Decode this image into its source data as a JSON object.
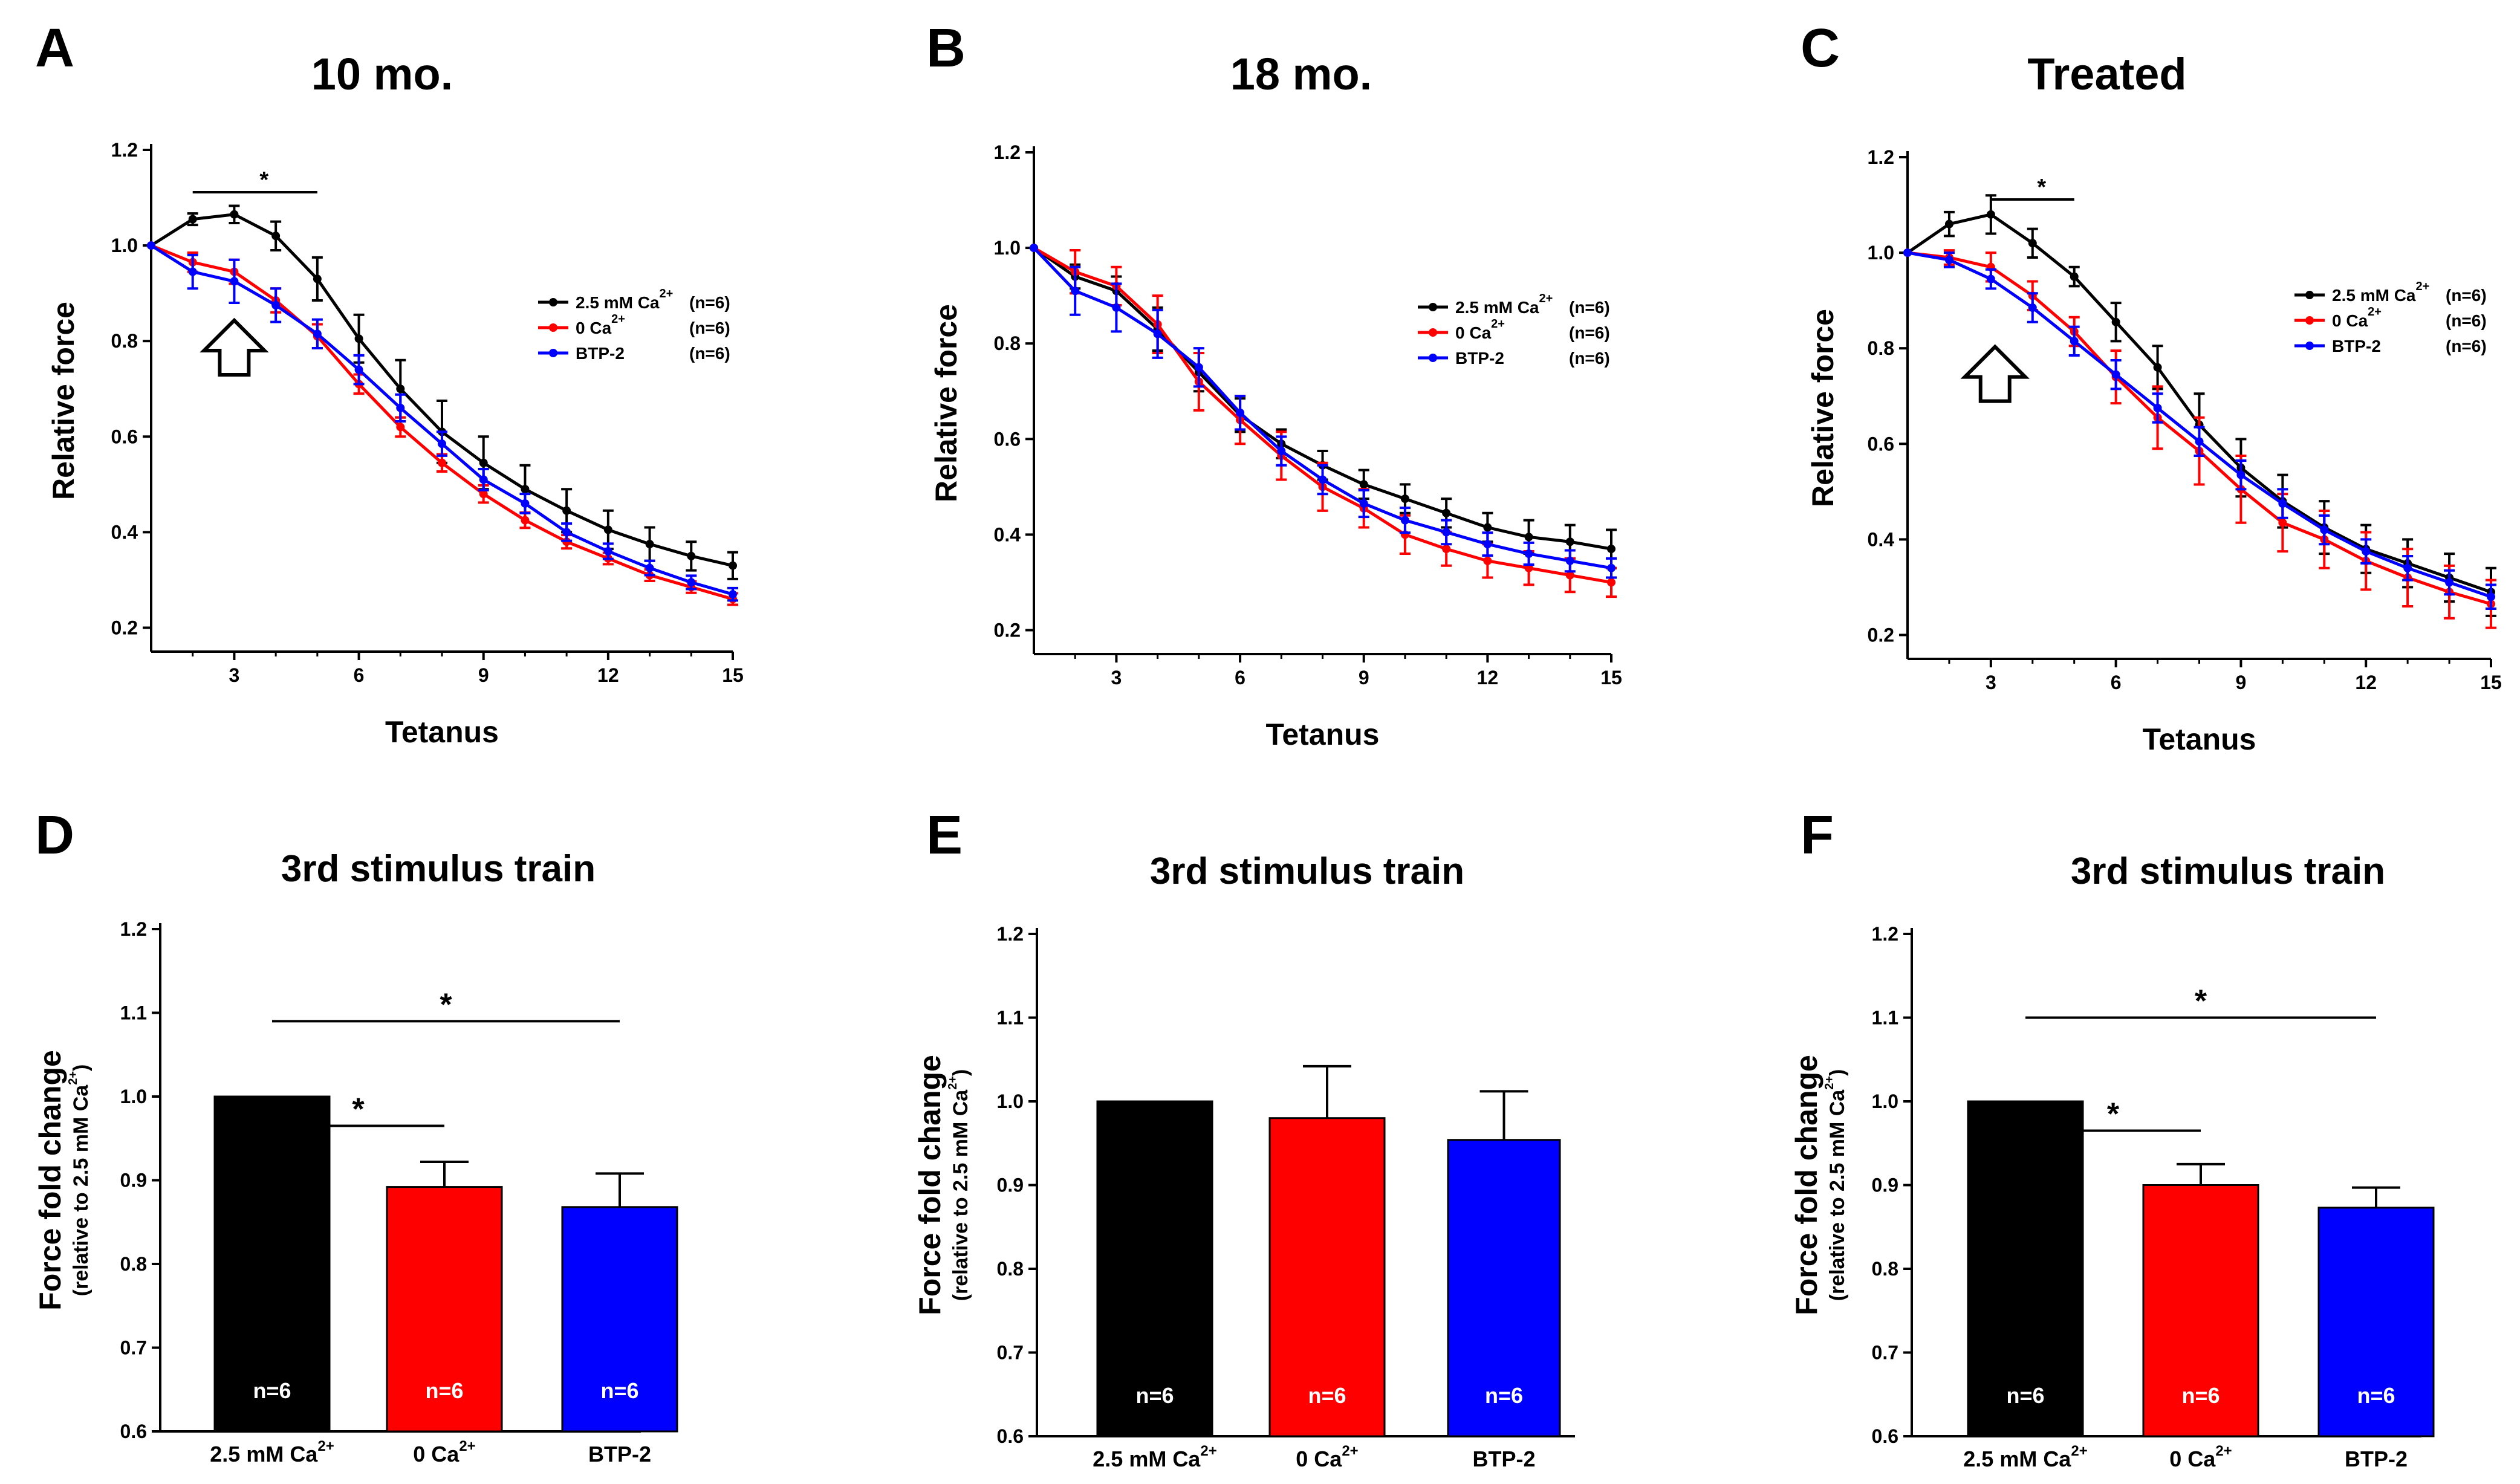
{
  "chart_data": [
    {
      "panel": "A",
      "type": "line",
      "title": "10 mo.",
      "xlabel": "Tetanus",
      "ylabel": "Relative force",
      "xticks": [
        3,
        6,
        9,
        12,
        15
      ],
      "xlim": [
        1,
        15
      ],
      "yticks": [
        "0.2",
        "0.4",
        "0.6",
        "0.8",
        "1.0",
        "1.2"
      ],
      "ylim": [
        0.15,
        1.2
      ],
      "significance": [
        {
          "from": 2,
          "to": 5,
          "label": "*"
        }
      ],
      "arrow_at": {
        "x": 3,
        "y": 0.78
      },
      "legend_position": "right-middle",
      "series": [
        {
          "name": "2.5 mM Ca",
          "sup": "2+",
          "n": "(n=6)",
          "color": "#000000",
          "x": [
            1,
            2,
            3,
            4,
            5,
            6,
            7,
            8,
            9,
            10,
            11,
            12,
            13,
            14,
            15
          ],
          "y": [
            1.0,
            1.055,
            1.065,
            1.02,
            0.93,
            0.805,
            0.7,
            0.61,
            0.545,
            0.49,
            0.445,
            0.405,
            0.375,
            0.35,
            0.33
          ],
          "err": [
            0,
            0.012,
            0.018,
            0.03,
            0.045,
            0.05,
            0.06,
            0.065,
            0.055,
            0.05,
            0.045,
            0.04,
            0.035,
            0.03,
            0.028
          ]
        },
        {
          "name": "0 Ca",
          "sup": "2+",
          "n": "(n=6)",
          "color": "#ff0000",
          "x": [
            1,
            2,
            3,
            4,
            5,
            6,
            7,
            8,
            9,
            10,
            11,
            12,
            13,
            14,
            15
          ],
          "y": [
            1.0,
            0.965,
            0.945,
            0.885,
            0.81,
            0.71,
            0.62,
            0.545,
            0.48,
            0.425,
            0.38,
            0.345,
            0.31,
            0.285,
            0.26
          ],
          "err": [
            0,
            0.02,
            0.025,
            0.025,
            0.025,
            0.02,
            0.02,
            0.018,
            0.018,
            0.016,
            0.014,
            0.012,
            0.012,
            0.012,
            0.012
          ]
        },
        {
          "name": "BTP-2",
          "sup": "",
          "n": "(n=6)",
          "color": "#0000ff",
          "x": [
            1,
            2,
            3,
            4,
            5,
            6,
            7,
            8,
            9,
            10,
            11,
            12,
            13,
            14,
            15
          ],
          "y": [
            1.0,
            0.945,
            0.925,
            0.875,
            0.815,
            0.74,
            0.66,
            0.585,
            0.51,
            0.46,
            0.4,
            0.36,
            0.325,
            0.295,
            0.27
          ],
          "err": [
            0,
            0.035,
            0.045,
            0.035,
            0.03,
            0.03,
            0.028,
            0.025,
            0.022,
            0.02,
            0.018,
            0.016,
            0.015,
            0.014,
            0.013
          ]
        }
      ]
    },
    {
      "panel": "B",
      "type": "line",
      "title": "18 mo.",
      "xlabel": "Tetanus",
      "ylabel": "Relative force",
      "xticks": [
        3,
        6,
        9,
        12,
        15
      ],
      "xlim": [
        1,
        15
      ],
      "yticks": [
        "0.2",
        "0.4",
        "0.6",
        "0.8",
        "1.0",
        "1.2"
      ],
      "ylim": [
        0.15,
        1.2
      ],
      "significance": [],
      "legend_position": "right-middle",
      "series": [
        {
          "name": "2.5 mM Ca",
          "sup": "2+",
          "n": "(n=6)",
          "color": "#000000",
          "x": [
            1,
            2,
            3,
            4,
            5,
            6,
            7,
            8,
            9,
            10,
            11,
            12,
            13,
            14,
            15
          ],
          "y": [
            1.0,
            0.94,
            0.91,
            0.83,
            0.74,
            0.65,
            0.59,
            0.545,
            0.505,
            0.475,
            0.445,
            0.415,
            0.395,
            0.385,
            0.37
          ],
          "err": [
            0,
            0.025,
            0.03,
            0.045,
            0.04,
            0.035,
            0.03,
            0.03,
            0.03,
            0.03,
            0.03,
            0.03,
            0.035,
            0.035,
            0.04
          ]
        },
        {
          "name": "0 Ca",
          "sup": "2+",
          "n": "(n=6)",
          "color": "#ff0000",
          "x": [
            1,
            2,
            3,
            4,
            5,
            6,
            7,
            8,
            9,
            10,
            11,
            12,
            13,
            14,
            15
          ],
          "y": [
            1.0,
            0.95,
            0.92,
            0.84,
            0.72,
            0.64,
            0.565,
            0.5,
            0.455,
            0.4,
            0.37,
            0.345,
            0.33,
            0.315,
            0.3
          ],
          "err": [
            0,
            0.045,
            0.04,
            0.06,
            0.06,
            0.05,
            0.05,
            0.05,
            0.04,
            0.04,
            0.035,
            0.035,
            0.035,
            0.035,
            0.03
          ]
        },
        {
          "name": "BTP-2",
          "sup": "",
          "n": "(n=6)",
          "color": "#0000ff",
          "x": [
            1,
            2,
            3,
            4,
            5,
            6,
            7,
            8,
            9,
            10,
            11,
            12,
            13,
            14,
            15
          ],
          "y": [
            1.0,
            0.91,
            0.875,
            0.82,
            0.75,
            0.655,
            0.575,
            0.515,
            0.465,
            0.43,
            0.405,
            0.38,
            0.36,
            0.345,
            0.33
          ],
          "err": [
            0,
            0.05,
            0.05,
            0.05,
            0.04,
            0.035,
            0.03,
            0.03,
            0.028,
            0.026,
            0.025,
            0.024,
            0.023,
            0.022,
            0.02
          ]
        }
      ]
    },
    {
      "panel": "C",
      "type": "line",
      "title": "Treated",
      "xlabel": "Tetanus",
      "ylabel": "Relative force",
      "xticks": [
        3,
        6,
        9,
        12,
        15
      ],
      "xlim": [
        1,
        15
      ],
      "yticks": [
        "0.2",
        "0.4",
        "0.6",
        "0.8",
        "1.0",
        "1.2"
      ],
      "ylim": [
        0.15,
        1.2
      ],
      "significance": [
        {
          "from": 3,
          "to": 5,
          "label": "*"
        }
      ],
      "arrow_at": {
        "x": 3.1,
        "y": 0.74
      },
      "legend_position": "right-upper",
      "series": [
        {
          "name": "2.5 mM Ca",
          "sup": "2+",
          "n": "(n=6)",
          "color": "#000000",
          "x": [
            1,
            2,
            3,
            4,
            5,
            6,
            7,
            8,
            9,
            10,
            11,
            12,
            13,
            14,
            15
          ],
          "y": [
            1.0,
            1.06,
            1.08,
            1.02,
            0.95,
            0.855,
            0.76,
            0.64,
            0.55,
            0.48,
            0.425,
            0.38,
            0.35,
            0.32,
            0.29
          ],
          "err": [
            0,
            0.025,
            0.04,
            0.03,
            0.02,
            0.04,
            0.045,
            0.065,
            0.06,
            0.055,
            0.055,
            0.05,
            0.05,
            0.05,
            0.05
          ]
        },
        {
          "name": "0 Ca",
          "sup": "2+",
          "n": "(n=6)",
          "color": "#ff0000",
          "x": [
            1,
            2,
            3,
            4,
            5,
            6,
            7,
            8,
            9,
            10,
            11,
            12,
            13,
            14,
            15
          ],
          "y": [
            1.0,
            0.99,
            0.97,
            0.91,
            0.835,
            0.74,
            0.655,
            0.585,
            0.505,
            0.435,
            0.4,
            0.355,
            0.32,
            0.29,
            0.265
          ],
          "err": [
            0,
            0.015,
            0.03,
            0.03,
            0.03,
            0.055,
            0.065,
            0.07,
            0.07,
            0.06,
            0.06,
            0.06,
            0.06,
            0.055,
            0.05
          ]
        },
        {
          "name": "BTP-2",
          "sup": "",
          "n": "(n=6)",
          "color": "#0000ff",
          "x": [
            1,
            2,
            3,
            4,
            5,
            6,
            7,
            8,
            9,
            10,
            11,
            12,
            13,
            14,
            15
          ],
          "y": [
            1.0,
            0.985,
            0.945,
            0.885,
            0.815,
            0.745,
            0.675,
            0.605,
            0.535,
            0.475,
            0.42,
            0.375,
            0.34,
            0.31,
            0.28
          ],
          "err": [
            0,
            0.015,
            0.02,
            0.03,
            0.03,
            0.03,
            0.03,
            0.03,
            0.03,
            0.03,
            0.03,
            0.025,
            0.025,
            0.025,
            0.025
          ]
        }
      ]
    },
    {
      "panel": "D",
      "type": "bar",
      "title": "3rd stimulus train",
      "ylabel": "Force fold change",
      "ylabel_sub": "(relative to 2.5 mM Ca",
      "ylabel_sub_sup": "2+",
      "ylabel_sub_end": ")",
      "yticks": [
        "0.6",
        "0.7",
        "0.8",
        "0.9",
        "1.0",
        "1.1",
        "1.2"
      ],
      "ylim": [
        0.6,
        1.2
      ],
      "categories": [
        {
          "label": "2.5 mM Ca",
          "sup": "2+"
        },
        {
          "label": "0 Ca",
          "sup": "2+"
        },
        {
          "label": "BTP-2",
          "sup": ""
        }
      ],
      "values": [
        1.0,
        0.892,
        0.868
      ],
      "errors": [
        0,
        0.03,
        0.04
      ],
      "colors": [
        "#000000",
        "#ff0000",
        "#0000ff"
      ],
      "n_labels": [
        "n=6",
        "n=6",
        "n=6"
      ],
      "significance": [
        {
          "from": 0,
          "to": 1,
          "y": 0.965,
          "label": "*"
        },
        {
          "from": 0,
          "to": 2,
          "y": 1.09,
          "label": "*"
        }
      ]
    },
    {
      "panel": "E",
      "type": "bar",
      "title": "3rd stimulus train",
      "ylabel": "Force fold change",
      "ylabel_sub": "(relative to 2.5 mM Ca",
      "ylabel_sub_sup": "2+",
      "ylabel_sub_end": ")",
      "yticks": [
        "0.6",
        "0.7",
        "0.8",
        "0.9",
        "1.0",
        "1.1",
        "1.2"
      ],
      "ylim": [
        0.6,
        1.2
      ],
      "categories": [
        {
          "label": "2.5 mM Ca",
          "sup": "2+"
        },
        {
          "label": "0 Ca",
          "sup": "2+"
        },
        {
          "label": "BTP-2",
          "sup": ""
        }
      ],
      "values": [
        1.0,
        0.98,
        0.954
      ],
      "errors": [
        0,
        0.062,
        0.058
      ],
      "colors": [
        "#000000",
        "#ff0000",
        "#0000ff"
      ],
      "n_labels": [
        "n=6",
        "n=6",
        "n=6"
      ],
      "significance": []
    },
    {
      "panel": "F",
      "type": "bar",
      "title": "3rd stimulus train",
      "ylabel": "Force fold change",
      "ylabel_sub": "(relative to 2.5 mM Ca",
      "ylabel_sub_sup": "2+",
      "ylabel_sub_end": ")",
      "yticks": [
        "0.6",
        "0.7",
        "0.8",
        "0.9",
        "1.0",
        "1.1",
        "1.2"
      ],
      "ylim": [
        0.6,
        1.2
      ],
      "categories": [
        {
          "label": "2.5 mM Ca",
          "sup": "2+"
        },
        {
          "label": "0 Ca",
          "sup": "2+"
        },
        {
          "label": "BTP-2",
          "sup": ""
        }
      ],
      "values": [
        1.0,
        0.9,
        0.873
      ],
      "errors": [
        0,
        0.025,
        0.024
      ],
      "colors": [
        "#000000",
        "#ff0000",
        "#0000ff"
      ],
      "n_labels": [
        "n=6",
        "n=6",
        "n=6"
      ],
      "significance": [
        {
          "from": 0,
          "to": 1,
          "y": 0.965,
          "label": "*"
        },
        {
          "from": 0,
          "to": 2,
          "y": 1.1,
          "label": "*"
        }
      ]
    }
  ]
}
